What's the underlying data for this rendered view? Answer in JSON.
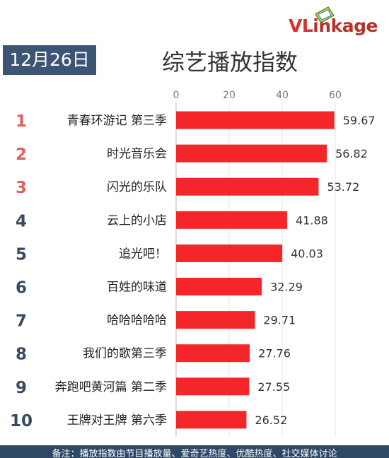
{
  "logo": {
    "text_v": "VL",
    "text_rest": "inkage"
  },
  "date": "12月26日",
  "title": "综艺播放指数",
  "footer": "备注：播放指数由节目播放量、爱奇艺热度、优酷热度、社交媒体讨论",
  "colors": {
    "bar": "#f5262a",
    "rank_top": "#e0605a",
    "rank_rest": "#3a4a63",
    "date_bg": "#3d5574",
    "footer_bg": "#2f4866"
  },
  "chart_data": {
    "type": "bar",
    "orientation": "horizontal",
    "title": "综艺播放指数",
    "xlim": [
      0,
      60
    ],
    "xticks": [
      0,
      20,
      40,
      60
    ],
    "categories": [
      "青春环游记 第三季",
      "时光音乐会",
      "闪光的乐队",
      "云上的小店",
      "追光吧！",
      "百姓的味道",
      "哈哈哈哈哈",
      "我们的歌第三季",
      "奔跑吧黄河篇 第二季",
      "王牌对王牌 第六季"
    ],
    "ranks": [
      "1",
      "2",
      "3",
      "4",
      "5",
      "6",
      "7",
      "8",
      "9",
      "10"
    ],
    "values": [
      59.67,
      56.82,
      53.72,
      41.88,
      40.03,
      32.29,
      29.71,
      27.76,
      27.55,
      26.52
    ],
    "value_labels": [
      "59.67",
      "56.82",
      "53.72",
      "41.88",
      "40.03",
      "32.29",
      "29.71",
      "27.76",
      "27.55",
      "26.52"
    ],
    "grid": true
  }
}
